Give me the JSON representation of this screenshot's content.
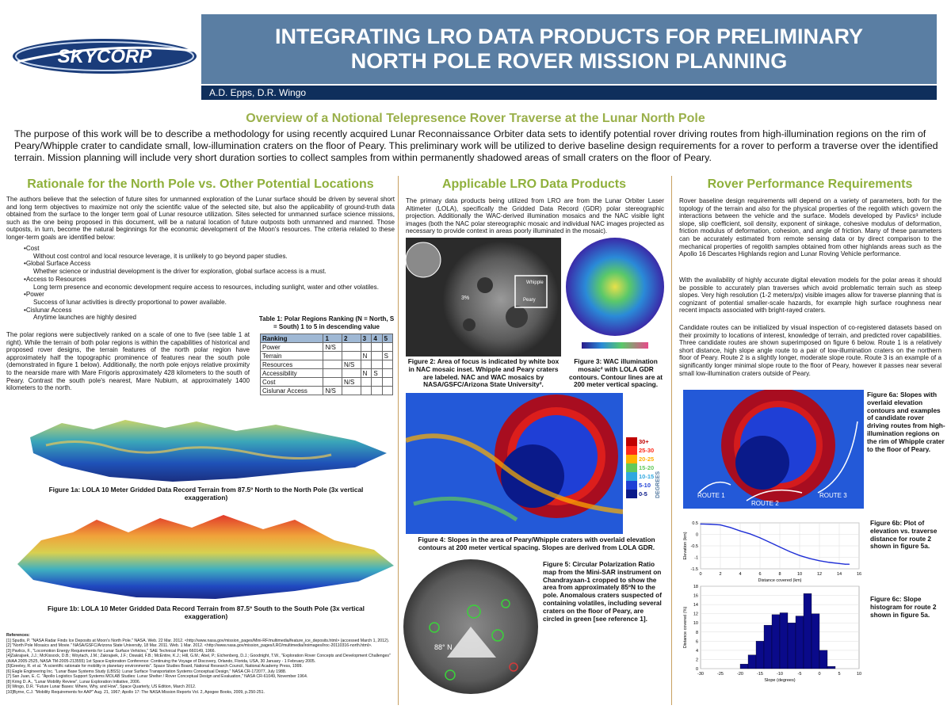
{
  "header": {
    "logo_text": "SKYCORP",
    "title_line1": "INTEGRATING LRO DATA PRODUCTS FOR PRELIMINARY",
    "title_line2": "NORTH POLE ROVER MISSION PLANNING",
    "authors": "A.D. Epps, D.R. Wingo"
  },
  "overview": {
    "heading": "Overview of a Notional Telepresence Rover Traverse at the Lunar North Pole",
    "text": "The purpose of this work will be to describe a methodology for using recently acquired Lunar Reconnaissance Orbiter data sets to identify potential rover driving routes from high-illumination regions on the rim of Peary/Whipple crater to candidate small, low-illumination craters on the floor of Peary.  This preliminary work will be utilized to derive baseline design requirements for a rover to perform a traverse over the identified terrain.  Mission planning will include very short duration sorties to collect samples from within permanently shadowed areas of small craters on the floor of Peary."
  },
  "col1": {
    "heading": "Rationale for the North Pole vs. Other Potential Locations",
    "intro": "The authors believe that the selection of future sites for unmanned exploration of the Lunar surface should be driven by several short and long term objectives to maximize not only the scientific value of the selected site, but also the applicability of ground-truth data obtained from the surface to the longer term goal of Lunar resource utilization.  Sites selected for unmanned surface science missions, such as the one being proposed in this document, will be a natural location of future outposts both unmanned and manned.  Those outposts, in turn, become the natural beginnings for the economic development of the Moon's resources.  The criteria related to these longer-term goals are identified below:",
    "criteria": [
      {
        "name": "•Cost",
        "desc": "Without cost control and local resource leverage, it is unlikely to go beyond paper studies."
      },
      {
        "name": "•Global Surface Access",
        "desc": "Whether science or industrial development is the driver for exploration, global surface access is a must."
      },
      {
        "name": "•Access to Resources",
        "desc": "Long term presence and economic development require access to resources, including sunlight, water and other volatiles."
      },
      {
        "name": "•Power",
        "desc": "Success of lunar activities is directly proportional to power available."
      },
      {
        "name": "•Cislunar Access",
        "desc": "Anytime launches are highly desired"
      }
    ],
    "para2": "The polar regions were subjectively ranked on a scale of one to five (see table 1 at right).  While the terrain of both polar regions is within the capabilities of historical and proposed rover designs, the terrain features of the north polar region have approximately half the topographic prominence of features near the south pole (demonstrated in figure 1 below).  Additionally, the north pole enjoys relative proximity to the nearside mare with Mare Frigoris approximately 428 kilometers to the south of Peary.  Contrast the south pole's nearest, Mare Nubium, at approximately 1400 kilometers to the north.",
    "table_caption": "Table 1: Polar Regions Ranking (N = North, S = South) 1 to 5 in descending value",
    "table_header": [
      "Ranking",
      "1",
      "2",
      "3",
      "4",
      "5"
    ],
    "table_rows": [
      [
        "Power",
        "N/S",
        "",
        "",
        "",
        ""
      ],
      [
        "Terrain",
        "",
        "",
        "N",
        "",
        "S"
      ],
      [
        "Resources",
        "",
        "N/S",
        "",
        "",
        ""
      ],
      [
        "Accessibility",
        "",
        "",
        "N",
        "S",
        ""
      ],
      [
        "Cost",
        "",
        "N/S",
        "",
        "",
        ""
      ],
      [
        "Cislunar Access",
        "N/S",
        "",
        "",
        "",
        ""
      ]
    ],
    "fig1a_caption": "Figure 1a: LOLA 10 Meter  Gridded Data Record Terrain  from 87.5º North to the North Pole (3x vertical exaggeration)",
    "fig1b_caption": "Figure 1b: LOLA 10 Meter  Gridded Data Record Terrain  from 87.5º South to the South Pole (3x vertical exaggeration)",
    "refs_title": "References:",
    "refs": [
      "[1] Spudis, P. \"NASA Radar Finds Ice Deposits at Moon's North Pole.\" NASA. Web. 22 Mar. 2012. <http://www.nasa.gov/mission_pages/Mini-RF/multimedia/feature_ice_deposits.html> (accessed March 1, 2012).",
      "[2] \"North Pole Mosaics and Movie.\" NASA/GSFC/Arizona State University, 18 Mar. 2011. Web. 1 Mar. 2012. <http://www.nasa.gov/mission_pages/LRO/multimedia/lroimages/lroc-20110316-north.html>.",
      "[3] Pavlics, F., \"Locomotion Energy Requirements for Lunar Surface Vehicles,\" SAE Technical Paper 660149, 1966.",
      "[4]Zakrajsek, J.J.; McKissock, D.B.; Woytach, J.M.; Zakrajsek, J.F.; Oswald, F.B.; McEntire, K.J.; Hill, G.M.; Abel, P.; Eichenberg, D.J.; Goodnight, T.W.,  \"Exploration Rover Concepts and Development Challenges\"",
      "    (AIAA 2005-2525, NASA TM-2005-213555)  1st Space Exploration Conference: Continuing the Voyage of Discovery, Orlando, Florida, USA, 30 January - 1 February 2005.",
      "[5]Greeley, R. et al. \"A scientific rationale for mobility in planetary environments\". Space Studies Board, National Research Council, National Academy Press, 1999.",
      "[6] Eagle Engineering Inc. \"Lunar Base Systems Study (LBSS): Lunar Surface Transportation Systems Conceptual Design,\" NASA CR-172077, July 1988.",
      "[7] San Juan, E. C. \"Apollo Logistics Support Systems MOLAB Studies: Lunar Shelter / Rover Conceptual Design and Evaluation,\" NASA CR-61049, November 1964.",
      "[8] Kring D. A., \"Lunar Mobility Review\", Lunar Exploration Initiative, 2006.",
      "[9] Wingo, D.R. \"Future Lunar Bases: Where, Why, and How\", Space Quarterly, US Edition, March 2012.",
      "[10]Byrne, C.J. \"Mobility Requirements for AAP\" Aug. 21, 1967; Apollo 17: The NASA Mission Reports Vol. 2, Apogee Books, 2009, p.250-251."
    ]
  },
  "col2": {
    "heading": "Applicable LRO Data Products",
    "intro": "The primary data products being utilized from LRO are from the Lunar Orbiter Laser Altimeter (LOLA), specifically the Gridded Data Record (GDR) polar stereographic projection.  Additionally the WAC-derived illumination mosaics and the NAC visible light images (both the NAC polar stereographic mosaic and individual NAC images projected as necessary to provide context in areas poorly illuminated in the mosaic).",
    "fig2_caption": "Figure 2: Area of focus is indicated by white box in NAC mosaic inset.  Whipple and Peary craters are labeled.  NAC and WAC mosaics by NASA/GSFC/Arizona State University².",
    "fig2_labels": [
      "Whipple",
      "Peary",
      "3%"
    ],
    "fig3_caption": "Figure 3: WAC illumination mosaic² with LOLA GDR contours. Contour lines are at 200 meter vertical spacing.",
    "fig4_caption": "Figure 4: Slopes in the area of Peary/Whipple craters with overlaid elevation contours at 200 meter vertical spacing.  Slopes are derived from LOLA GDR.",
    "legend_title": "DEGREES",
    "legend": [
      {
        "label": "30+",
        "color": "#c00000"
      },
      {
        "label": "25-30",
        "color": "#ff2a1a"
      },
      {
        "label": "20-25",
        "color": "#ffb000"
      },
      {
        "label": "15-20",
        "color": "#62c95a"
      },
      {
        "label": "10-15",
        "color": "#2fa8e0"
      },
      {
        "label": "5-10",
        "color": "#1f3fd6"
      },
      {
        "label": "0-5",
        "color": "#0a1a8a"
      }
    ],
    "fig5_caption": "Figure 5: Circular Polarization Ratio map from the Mini-SAR instrument on Chandrayaan-1 cropped to show the area from approximately 85ºN to the pole.  Anomalous craters suspected of containing volatiles, including several craters on the floor of Peary, are circled in green [see reference 1].",
    "fig5_label": "88° N"
  },
  "col3": {
    "heading": "Rover Performance Requirements",
    "p1": "Rover baseline design requirements will depend on a variety of parameters, both for the topology of the terrain and also for the physical properties of the regolith which govern the interactions between the vehicle and the surface.  Models developed by Pavlics³ include slope, slip coefficient, soil density, exponent of sinkage, cohesive modulus of deformation, friction modulus of deformation, cohesion, and angle of friction.  Many of these parameters can be accurately estimated from remote sensing data or by direct comparison to the mechanical properties of regolith samples obtained from other highlands areas such as the Apollo 16 Descartes Highlands region and Lunar Roving Vehicle performance.",
    "p2": "With the availability of highly accurate digital elevation models for the polar areas it should be possible to accurately plan traverses which avoid problematic terrain such as steep slopes.  Very high resolution (1-2 meters/px) visible images allow for traverse planning that is cognizant of potential smaller-scale hazards, for example high surface roughness near recent impacts associated with bright-rayed craters.",
    "p3": "Candidate routes can be initialized by visual inspection of co-registered datasets based on their proximity to locations of interest, knowledge of terrain, and predicted rover capabilities.  Three candidate routes are shown superimposed on figure 6 below.  Route 1 is a relatively short distance, high slope angle route to a pair of low-illumination craters on the northern floor of Peary.  Route 2 is a slightly longer, moderate slope route.  Route 3 is an example of a significantly longer minimal slope route to the floor of Peary, however it passes near several small low-illumination craters outside of Peary.",
    "fig6a_caption": "Figure 6a: Slopes with overlaid elevation contours and examples of candidate rover driving routes from high-illumination regions on the rim of Whipple crater to the floor of Peary.",
    "routes": [
      "ROUTE 1",
      "ROUTE 2",
      "ROUTE 3"
    ],
    "fig6b_caption": "Figure 6b: Plot of elevation vs. traverse distance for route 2 shown in figure 5a.",
    "fig6c_caption": "Figure 6c: Slope histogram for route 2 shown in figure 5a."
  },
  "chart_data": [
    {
      "type": "line",
      "title": "",
      "xlabel": "Distance covered (km)",
      "ylabel": "Elevation (km)",
      "xlim": [
        0,
        16
      ],
      "ylim": [
        -1.5,
        0.5
      ],
      "xticks": [
        0,
        2,
        4,
        6,
        8,
        10,
        12,
        14,
        16
      ],
      "yticks": [
        0.5,
        0,
        -0.5,
        -1,
        -1.5
      ],
      "x": [
        0,
        1,
        2,
        3,
        4,
        5,
        6,
        7,
        8,
        9,
        10,
        11,
        12,
        13,
        14,
        14.6,
        15
      ],
      "y": [
        0.45,
        0.44,
        0.41,
        0.3,
        0.15,
        0.02,
        -0.15,
        -0.35,
        -0.55,
        -0.75,
        -0.92,
        -1.05,
        -1.15,
        -1.22,
        -1.27,
        -1.3,
        -1.3
      ],
      "color": "#1f2fd6"
    },
    {
      "type": "bar",
      "title": "",
      "xlabel": "Slope (degrees)",
      "ylabel": "Distance covered (%)",
      "xlim": [
        -30,
        10
      ],
      "ylim": [
        0,
        18
      ],
      "xticks": [
        -30,
        -25,
        -20,
        -15,
        -10,
        -5,
        0,
        5,
        10
      ],
      "yticks": [
        0,
        2,
        4,
        6,
        8,
        10,
        12,
        14,
        16,
        18
      ],
      "bins": [
        -20,
        -18,
        -16,
        -14,
        -12,
        -10,
        -8,
        -6,
        -4,
        -2,
        0,
        2
      ],
      "values": [
        1,
        3,
        6,
        9.5,
        11.8,
        12.2,
        10,
        11.5,
        16.4,
        12,
        4,
        0.5
      ],
      "bin_width": 2,
      "color": "#0a0a8a"
    }
  ]
}
